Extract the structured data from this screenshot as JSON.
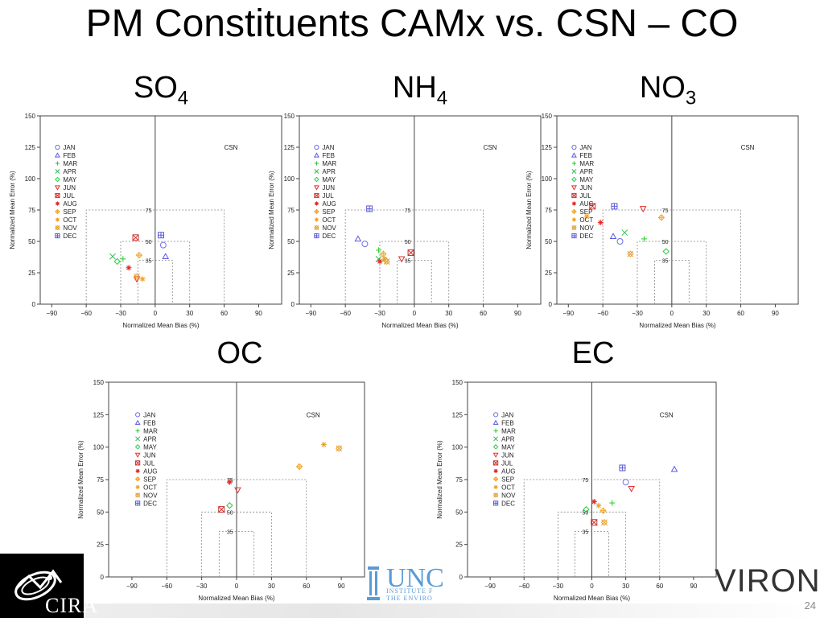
{
  "slide": {
    "title": "PM Constituents CAMx vs. CSN – CO",
    "page_number": "24"
  },
  "panels": {
    "so4": {
      "base": "SO",
      "sub": "4"
    },
    "nh4": {
      "base": "NH",
      "sub": "4"
    },
    "no3": {
      "base": "NO",
      "sub": "3"
    },
    "oc": {
      "label": "OC"
    },
    "ec": {
      "label": "EC"
    }
  },
  "logos": {
    "cira": "CIRA",
    "unc": "UNC",
    "unc_line1": "INSTITUTE F",
    "unc_line2": "THE ENVIRO",
    "environ": "VIRON"
  },
  "chart_data": [
    {
      "id": "so4",
      "type": "scatter",
      "title": "SO4",
      "xlabel": "Normalized Mean Bias (%)",
      "ylabel": "Normalized Mean Error (%)",
      "xlim": [
        -100,
        110
      ],
      "ylim": [
        0,
        150
      ],
      "xticks": [
        -90,
        -60,
        -30,
        0,
        30,
        60,
        90
      ],
      "yticks": [
        0,
        25,
        50,
        75,
        100,
        125,
        150
      ],
      "network_label": "CSN",
      "goal_labels": [
        "75",
        "50",
        "35"
      ],
      "legend": [
        "JAN",
        "FEB",
        "MAR",
        "APR",
        "MAY",
        "JUN",
        "JUL",
        "AUG",
        "SEP",
        "OCT",
        "NOV",
        "DEC"
      ],
      "points": [
        {
          "month": "JAN",
          "x": 7,
          "y": 47
        },
        {
          "month": "FEB",
          "x": 9,
          "y": 38
        },
        {
          "month": "MAR",
          "x": -28,
          "y": 36
        },
        {
          "month": "APR",
          "x": -37,
          "y": 38
        },
        {
          "month": "MAY",
          "x": -33,
          "y": 34
        },
        {
          "month": "JUN",
          "x": -16,
          "y": 20
        },
        {
          "month": "JUL",
          "x": -17,
          "y": 53
        },
        {
          "month": "AUG",
          "x": -23,
          "y": 29
        },
        {
          "month": "SEP",
          "x": -14,
          "y": 39
        },
        {
          "month": "OCT",
          "x": -11,
          "y": 20
        },
        {
          "month": "NOV",
          "x": -16,
          "y": 22
        },
        {
          "month": "DEC",
          "x": 5,
          "y": 55
        }
      ]
    },
    {
      "id": "nh4",
      "type": "scatter",
      "title": "NH4",
      "xlabel": "Normalized Mean Bias (%)",
      "ylabel": "Normalized Mean Error (%)",
      "xlim": [
        -100,
        110
      ],
      "ylim": [
        0,
        150
      ],
      "xticks": [
        -90,
        -60,
        -30,
        0,
        30,
        60,
        90
      ],
      "yticks": [
        0,
        25,
        50,
        75,
        100,
        125,
        150
      ],
      "network_label": "CSN",
      "goal_labels": [
        "75",
        "50",
        "35"
      ],
      "legend": [
        "JAN",
        "FEB",
        "MAR",
        "APR",
        "MAY",
        "JUN",
        "JUL",
        "AUG",
        "SEP",
        "OCT",
        "NOV",
        "DEC"
      ],
      "points": [
        {
          "month": "JAN",
          "x": -43,
          "y": 48
        },
        {
          "month": "FEB",
          "x": -49,
          "y": 52
        },
        {
          "month": "MAR",
          "x": -31,
          "y": 43
        },
        {
          "month": "APR",
          "x": -31,
          "y": 36
        },
        {
          "month": "MAY",
          "x": -25,
          "y": 35
        },
        {
          "month": "JUN",
          "x": -11,
          "y": 36
        },
        {
          "month": "JUL",
          "x": -3,
          "y": 41
        },
        {
          "month": "AUG",
          "x": -30,
          "y": 34
        },
        {
          "month": "SEP",
          "x": -27,
          "y": 40
        },
        {
          "month": "OCT",
          "x": -26,
          "y": 36
        },
        {
          "month": "NOV",
          "x": -24,
          "y": 34
        },
        {
          "month": "DEC",
          "x": -39,
          "y": 76
        }
      ]
    },
    {
      "id": "no3",
      "type": "scatter",
      "title": "NO3",
      "xlabel": "Normalized Mean Bias (%)",
      "ylabel": "Normalized Mean Error (%)",
      "xlim": [
        -100,
        110
      ],
      "ylim": [
        0,
        150
      ],
      "xticks": [
        -90,
        -60,
        -30,
        0,
        30,
        60,
        90
      ],
      "yticks": [
        0,
        25,
        50,
        75,
        100,
        125,
        150
      ],
      "network_label": "CSN",
      "goal_labels": [
        "75",
        "50",
        "35"
      ],
      "legend": [
        "JAN",
        "FEB",
        "MAR",
        "APR",
        "MAY",
        "JUN",
        "JUL",
        "AUG",
        "SEP",
        "OCT",
        "NOV",
        "DEC"
      ],
      "points": [
        {
          "month": "JAN",
          "x": -45,
          "y": 50
        },
        {
          "month": "FEB",
          "x": -51,
          "y": 54
        },
        {
          "month": "MAR",
          "x": -24,
          "y": 52
        },
        {
          "month": "APR",
          "x": -41,
          "y": 57
        },
        {
          "month": "MAY",
          "x": -5,
          "y": 42
        },
        {
          "month": "JUN",
          "x": -25,
          "y": 76
        },
        {
          "month": "JUL",
          "x": -69,
          "y": 78
        },
        {
          "month": "AUG",
          "x": -62,
          "y": 65
        },
        {
          "month": "SEP",
          "x": -9,
          "y": 69
        },
        {
          "month": "OCT",
          "x": -74,
          "y": 70
        },
        {
          "month": "NOV",
          "x": -36,
          "y": 40
        },
        {
          "month": "DEC",
          "x": -50,
          "y": 78
        }
      ]
    },
    {
      "id": "oc",
      "type": "scatter",
      "title": "OC",
      "xlabel": "Normalized Mean Bias (%)",
      "ylabel": "Normalized Mean Error (%)",
      "xlim": [
        -110,
        110
      ],
      "ylim": [
        0,
        150
      ],
      "xticks": [
        -90,
        -60,
        -30,
        0,
        30,
        60,
        90
      ],
      "yticks": [
        0,
        25,
        50,
        75,
        100,
        125,
        150
      ],
      "network_label": "CSN",
      "goal_labels": [
        "75",
        "50",
        "35"
      ],
      "legend": [
        "JAN",
        "FEB",
        "MAR",
        "APR",
        "MAY",
        "JUN",
        "JUL",
        "AUG",
        "SEP",
        "OCT",
        "NOV",
        "DEC"
      ],
      "points": [
        {
          "month": "JUN",
          "x": 1,
          "y": 67
        },
        {
          "month": "JUL",
          "x": -13,
          "y": 52
        },
        {
          "month": "AUG",
          "x": -6,
          "y": 73
        },
        {
          "month": "MAY",
          "x": -6,
          "y": 55
        },
        {
          "month": "SEP",
          "x": 54,
          "y": 85
        },
        {
          "month": "OCT",
          "x": 75,
          "y": 102
        },
        {
          "month": "NOV",
          "x": 88,
          "y": 99
        }
      ]
    },
    {
      "id": "ec",
      "type": "scatter",
      "title": "EC",
      "xlabel": "Normalized Mean Bias (%)",
      "ylabel": "Normalized Mean Error (%)",
      "xlim": [
        -110,
        110
      ],
      "ylim": [
        0,
        150
      ],
      "xticks": [
        -90,
        -60,
        -30,
        0,
        30,
        60,
        90
      ],
      "yticks": [
        0,
        25,
        50,
        75,
        100,
        125,
        150
      ],
      "network_label": "CSN",
      "goal_labels": [
        "75",
        "50",
        "35"
      ],
      "legend": [
        "JAN",
        "FEB",
        "MAR",
        "APR",
        "MAY",
        "JUN",
        "JUL",
        "AUG",
        "SEP",
        "OCT",
        "NOV",
        "DEC"
      ],
      "points": [
        {
          "month": "JAN",
          "x": 30,
          "y": 73
        },
        {
          "month": "FEB",
          "x": 73,
          "y": 83
        },
        {
          "month": "MAR",
          "x": 18,
          "y": 57
        },
        {
          "month": "MAY",
          "x": -5,
          "y": 52
        },
        {
          "month": "JUN",
          "x": 35,
          "y": 68
        },
        {
          "month": "JUL",
          "x": 2,
          "y": 42
        },
        {
          "month": "AUG",
          "x": 2,
          "y": 58
        },
        {
          "month": "SEP",
          "x": 10,
          "y": 51
        },
        {
          "month": "OCT",
          "x": 6,
          "y": 55
        },
        {
          "month": "NOV",
          "x": 11,
          "y": 42
        },
        {
          "month": "DEC",
          "x": 27,
          "y": 84
        }
      ]
    }
  ],
  "month_colors": {
    "JAN": "#6f6fe8",
    "FEB": "#5a5ae0",
    "MAR": "#22cc22",
    "APR": "#33bb55",
    "MAY": "#22cc44",
    "JUN": "#e03030",
    "JUL": "#cc3333",
    "AUG": "#e02020",
    "SEP": "#f5a623",
    "OCT": "#f0a020",
    "NOV": "#e8a030",
    "DEC": "#5858d8"
  }
}
